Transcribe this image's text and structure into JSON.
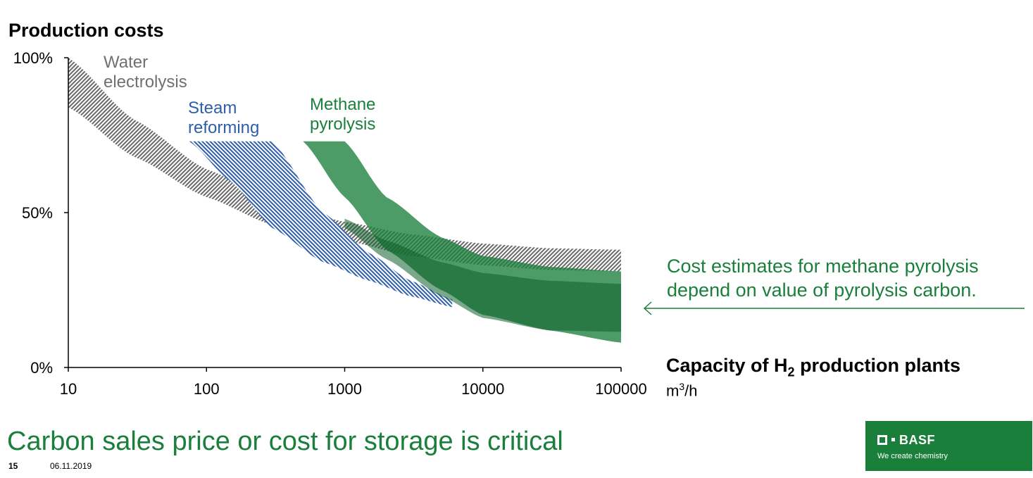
{
  "chart_data": {
    "type": "area",
    "title": "Production costs",
    "xlabel_main": "Capacity of H",
    "xlabel_sub": "2",
    "xlabel_rest": " production plants",
    "xunit_main": "m",
    "xunit_sup": "3",
    "xunit_rest": "/h",
    "xscale": "log",
    "xlim": [
      10,
      100000
    ],
    "ylim": [
      0,
      100
    ],
    "x_ticks": [
      "10",
      "100",
      "1000",
      "10000",
      "100000"
    ],
    "y_ticks": [
      "0%",
      "50%",
      "100%"
    ],
    "series": [
      {
        "name": "Water electrolysis",
        "label_lines": [
          "Water",
          "electrolysis"
        ],
        "color": "#707070",
        "fill": "hatch",
        "x": [
          10,
          30,
          100,
          300,
          1000,
          3000,
          10000,
          30000,
          100000
        ],
        "upper": [
          100,
          80,
          64,
          54,
          47,
          43,
          40,
          38.5,
          38
        ],
        "lower": [
          84,
          68,
          55,
          46,
          41,
          36,
          33,
          31.5,
          31
        ]
      },
      {
        "name": "Steam reforming",
        "label_lines": [
          "Steam",
          "reforming"
        ],
        "color": "#2e5fa8",
        "fill": "hatch",
        "x": [
          75,
          150,
          300,
          700,
          1500,
          3000,
          6000
        ],
        "upper": [
          73,
          73,
          73,
          50,
          37,
          28,
          22
        ],
        "lower": [
          73,
          60,
          45,
          34,
          28,
          23,
          19.5
        ]
      },
      {
        "name": "Methane pyrolysis",
        "label_lines": [
          "Methane",
          "pyrolysis"
        ],
        "color": "#1b7f3c",
        "fill": "solid",
        "x": [
          500,
          1000,
          2000,
          5000,
          10000,
          30000,
          100000
        ],
        "upper": [
          73,
          73,
          55,
          42,
          36,
          32.5,
          31
        ],
        "lower": [
          73,
          55,
          38,
          25,
          17,
          12,
          8
        ]
      }
    ],
    "inner_band": {
      "name": "pyrolysis carbon value range",
      "x": [
        1000,
        2000,
        5000,
        10000,
        30000,
        100000
      ],
      "upper": [
        48,
        41,
        34,
        30.5,
        28,
        27
      ],
      "lower": [
        45,
        35,
        23,
        16,
        12,
        11.5
      ]
    },
    "annotation_lines": [
      "Cost estimates for methane pyrolysis",
      "depend on value of pyrolysis carbon."
    ]
  },
  "slide": {
    "headline": "Carbon sales price or cost for storage is critical",
    "page_number": "15",
    "date": "06.11.2019"
  },
  "logo": {
    "name": "BASF",
    "tagline": "We create chemistry"
  }
}
